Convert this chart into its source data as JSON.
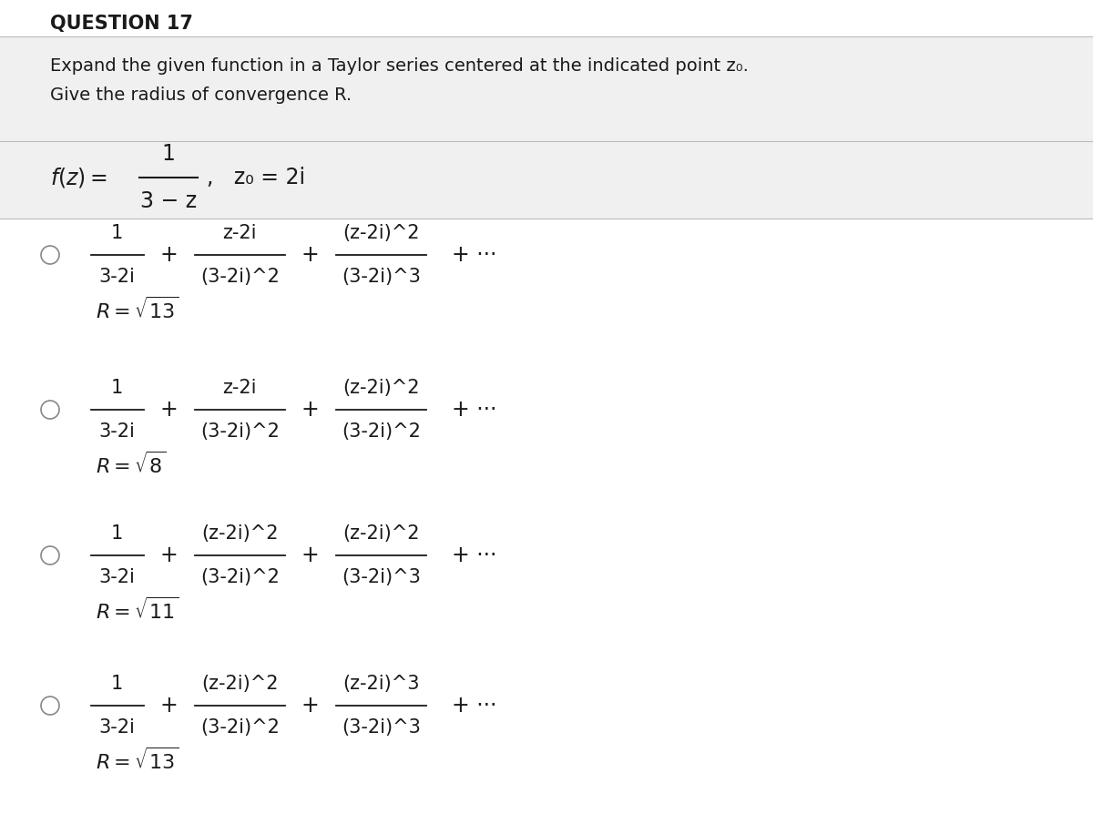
{
  "title": "QUESTION 17",
  "subtitle1": "Expand the given function in a Taylor series centered at the indicated point z₀.",
  "subtitle2": "Give the radius of convergence R.",
  "bg_color": "#f0f0f0",
  "white_bg": "#ffffff",
  "text_color": "#1a1a1a",
  "radio_color": "#888888",
  "options": [
    {
      "nums": [
        "1",
        "z-2i",
        "(z-2i)^2"
      ],
      "denoms": [
        "3-2i",
        "(3-2i)^2",
        "(3-2i)^3"
      ],
      "R_num": "13"
    },
    {
      "nums": [
        "1",
        "z-2i",
        "(z-2i)^2"
      ],
      "denoms": [
        "3-2i",
        "(3-2i)^2",
        "(3-2i)^2"
      ],
      "R_num": "8"
    },
    {
      "nums": [
        "1",
        "(z-2i)^2",
        "(z-2i)^2"
      ],
      "denoms": [
        "3-2i",
        "(3-2i)^2",
        "(3-2i)^3"
      ],
      "R_num": "11"
    },
    {
      "nums": [
        "1",
        "(z-2i)^2",
        "(z-2i)^3"
      ],
      "denoms": [
        "3-2i",
        "(3-2i)^2",
        "(3-2i)^3"
      ],
      "R_num": "13"
    }
  ]
}
